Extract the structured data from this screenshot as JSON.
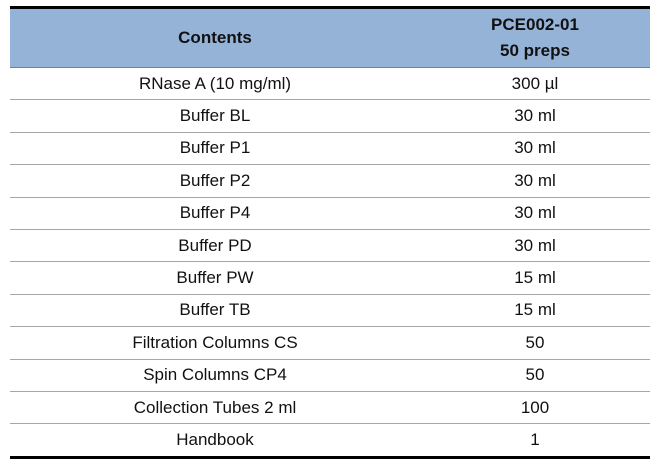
{
  "table": {
    "header": {
      "contents": "Contents",
      "product": [
        "PCE002-01",
        "50 preps"
      ]
    },
    "rows": [
      [
        "RNase A (10 mg/ml)",
        "300 µl"
      ],
      [
        "Buffer BL",
        "30 ml"
      ],
      [
        "Buffer P1",
        "30 ml"
      ],
      [
        "Buffer P2",
        "30 ml"
      ],
      [
        "Buffer P4",
        "30 ml"
      ],
      [
        "Buffer PD",
        "30 ml"
      ],
      [
        "Buffer PW",
        "15 ml"
      ],
      [
        "Buffer TB",
        "15 ml"
      ],
      [
        "Filtration Columns CS",
        "50"
      ],
      [
        "Spin Columns CP4",
        "50"
      ],
      [
        "Collection Tubes 2 ml",
        "100"
      ],
      [
        "Handbook",
        "1"
      ]
    ]
  }
}
